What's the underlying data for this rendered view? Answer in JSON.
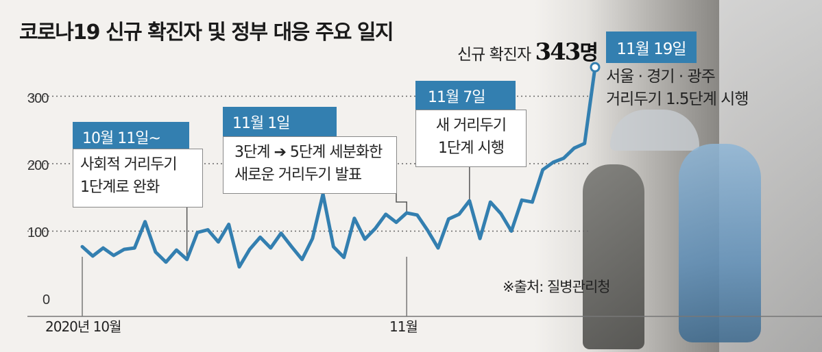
{
  "title": "코로나19 신규 확진자 및 정부 대응 주요 일지",
  "source": "※출처: 질병관리청",
  "peak": {
    "prefix": "신규 확진자",
    "value": "343",
    "unit": "명",
    "date": "11월 19일",
    "desc_line1": "서울 · 경기 · 광주",
    "desc_line2": "거리두기 1.5단계 시행"
  },
  "events": [
    {
      "date": "10월 11일~",
      "line1": "사회적 거리두기",
      "line2": "1단계로 완화"
    },
    {
      "date": "11월 1일",
      "line1": "3단계 ➔ 5단계 세분화한",
      "line2": "새로운 거리두기 발표"
    },
    {
      "date": "11월 7일",
      "line1": "새 거리두기",
      "line2": "1단계 시행"
    }
  ],
  "chart_data": {
    "type": "line",
    "ylim": [
      0,
      343
    ],
    "yticks": [
      "0",
      "100",
      "200",
      "300"
    ],
    "xticks": [
      "2020년 10월",
      "11월"
    ],
    "x_start": "2020-10-01",
    "x_end": "2020-11-19",
    "series": [
      {
        "color": "#337fb0",
        "values": [
          77,
          63,
          75,
          64,
          73,
          75,
          114,
          69,
          54,
          72,
          58,
          98,
          102,
          84,
          110,
          47,
          73,
          91,
          75,
          97,
          77,
          58,
          89,
          155,
          77,
          61,
          119,
          88,
          104,
          125,
          113,
          127,
          124,
          101,
          75,
          118,
          125,
          145,
          89,
          143,
          126,
          100,
          146,
          143,
          191,
          202,
          208,
          223,
          230,
          343
        ]
      }
    ]
  }
}
